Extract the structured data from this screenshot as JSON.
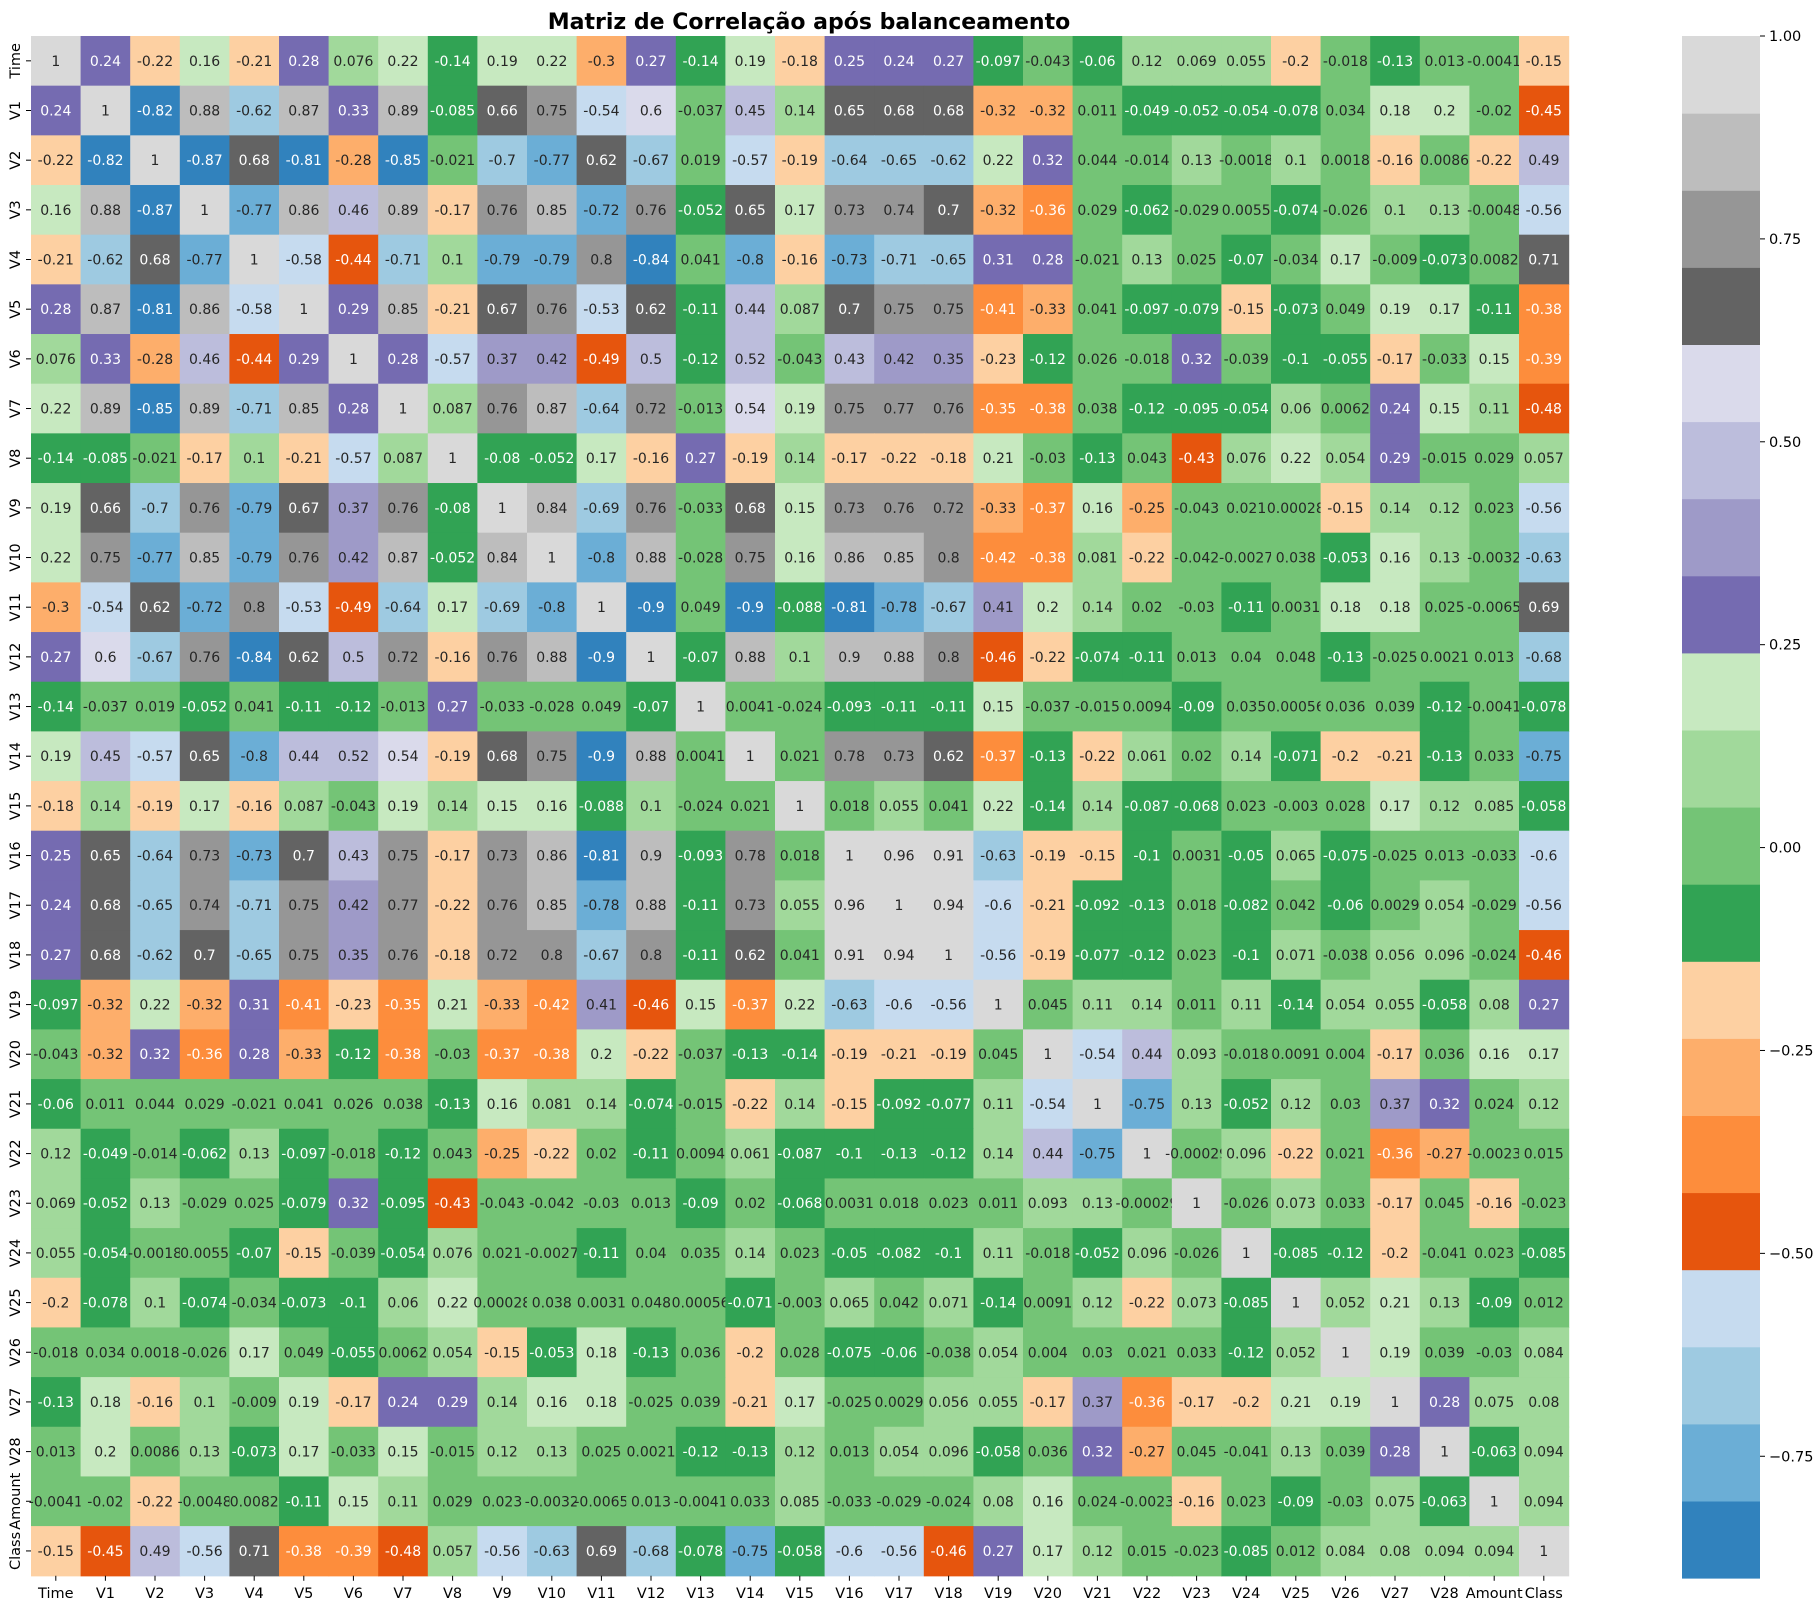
{
  "chart_data": {
    "type": "heatmap",
    "title": "Matriz de Correlação após balanceamento",
    "labels": [
      "Time",
      "V1",
      "V2",
      "V3",
      "V4",
      "V5",
      "V6",
      "V7",
      "V8",
      "V9",
      "V10",
      "V11",
      "V12",
      "V13",
      "V14",
      "V15",
      "V16",
      "V17",
      "V18",
      "V19",
      "V20",
      "V21",
      "V22",
      "V23",
      "V24",
      "V25",
      "V26",
      "V27",
      "V28",
      "Amount",
      "Class"
    ],
    "matrix": [
      [
        "1",
        "0.24",
        "-0.22",
        "0.16",
        "-0.21",
        "0.28",
        "0.076",
        "0.22",
        "-0.14",
        "0.19",
        "0.22",
        "-0.3",
        "0.27",
        "-0.14",
        "0.19",
        "-0.18",
        "0.25",
        "0.24",
        "0.27",
        "-0.097",
        "-0.043",
        "-0.06",
        "0.12",
        "0.069",
        "0.055",
        "-0.2",
        "-0.018",
        "-0.13",
        "0.013",
        "-0.0041",
        "-0.15"
      ],
      [
        "0.24",
        "1",
        "-0.82",
        "0.88",
        "-0.62",
        "0.87",
        "0.33",
        "0.89",
        "-0.085",
        "0.66",
        "0.75",
        "-0.54",
        "0.6",
        "-0.037",
        "0.45",
        "0.14",
        "0.65",
        "0.68",
        "0.68",
        "-0.32",
        "-0.32",
        "0.011",
        "-0.049",
        "-0.052",
        "-0.054",
        "-0.078",
        "0.034",
        "0.18",
        "0.2",
        "-0.02",
        "-0.45"
      ],
      [
        "-0.22",
        "-0.82",
        "1",
        "-0.87",
        "0.68",
        "-0.81",
        "-0.28",
        "-0.85",
        "-0.021",
        "-0.7",
        "-0.77",
        "0.62",
        "-0.67",
        "0.019",
        "-0.57",
        "-0.19",
        "-0.64",
        "-0.65",
        "-0.62",
        "0.22",
        "0.32",
        "0.044",
        "-0.014",
        "0.13",
        "-0.0018",
        "0.1",
        "0.0018",
        "-0.16",
        "0.0086",
        "-0.22",
        "0.49"
      ],
      [
        "0.16",
        "0.88",
        "-0.87",
        "1",
        "-0.77",
        "0.86",
        "0.46",
        "0.89",
        "-0.17",
        "0.76",
        "0.85",
        "-0.72",
        "0.76",
        "-0.052",
        "0.65",
        "0.17",
        "0.73",
        "0.74",
        "0.7",
        "-0.32",
        "-0.36",
        "0.029",
        "-0.062",
        "-0.029",
        "0.0055",
        "-0.074",
        "-0.026",
        "0.1",
        "0.13",
        "-0.0048",
        "-0.56"
      ],
      [
        "-0.21",
        "-0.62",
        "0.68",
        "-0.77",
        "1",
        "-0.58",
        "-0.44",
        "-0.71",
        "0.1",
        "-0.79",
        "-0.79",
        "0.8",
        "-0.84",
        "0.041",
        "-0.8",
        "-0.16",
        "-0.73",
        "-0.71",
        "-0.65",
        "0.31",
        "0.28",
        "-0.021",
        "0.13",
        "0.025",
        "-0.07",
        "-0.034",
        "0.17",
        "-0.009",
        "-0.073",
        "0.0082",
        "0.71"
      ],
      [
        "0.28",
        "0.87",
        "-0.81",
        "0.86",
        "-0.58",
        "1",
        "0.29",
        "0.85",
        "-0.21",
        "0.67",
        "0.76",
        "-0.53",
        "0.62",
        "-0.11",
        "0.44",
        "0.087",
        "0.7",
        "0.75",
        "0.75",
        "-0.41",
        "-0.33",
        "0.041",
        "-0.097",
        "-0.079",
        "-0.15",
        "-0.073",
        "0.049",
        "0.19",
        "0.17",
        "-0.11",
        "-0.38"
      ],
      [
        "0.076",
        "0.33",
        "-0.28",
        "0.46",
        "-0.44",
        "0.29",
        "1",
        "0.28",
        "-0.57",
        "0.37",
        "0.42",
        "-0.49",
        "0.5",
        "-0.12",
        "0.52",
        "-0.043",
        "0.43",
        "0.42",
        "0.35",
        "-0.23",
        "-0.12",
        "0.026",
        "-0.018",
        "0.32",
        "-0.039",
        "-0.1",
        "-0.055",
        "-0.17",
        "-0.033",
        "0.15",
        "-0.39"
      ],
      [
        "0.22",
        "0.89",
        "-0.85",
        "0.89",
        "-0.71",
        "0.85",
        "0.28",
        "1",
        "0.087",
        "0.76",
        "0.87",
        "-0.64",
        "0.72",
        "-0.013",
        "0.54",
        "0.19",
        "0.75",
        "0.77",
        "0.76",
        "-0.35",
        "-0.38",
        "0.038",
        "-0.12",
        "-0.095",
        "-0.054",
        "0.06",
        "0.0062",
        "0.24",
        "0.15",
        "0.11",
        "-0.48"
      ],
      [
        "-0.14",
        "-0.085",
        "-0.021",
        "-0.17",
        "0.1",
        "-0.21",
        "-0.57",
        "0.087",
        "1",
        "-0.08",
        "-0.052",
        "0.17",
        "-0.16",
        "0.27",
        "-0.19",
        "0.14",
        "-0.17",
        "-0.22",
        "-0.18",
        "0.21",
        "-0.03",
        "-0.13",
        "0.043",
        "-0.43",
        "0.076",
        "0.22",
        "0.054",
        "0.29",
        "-0.015",
        "0.029",
        "0.057"
      ],
      [
        "0.19",
        "0.66",
        "-0.7",
        "0.76",
        "-0.79",
        "0.67",
        "0.37",
        "0.76",
        "-0.08",
        "1",
        "0.84",
        "-0.69",
        "0.76",
        "-0.033",
        "0.68",
        "0.15",
        "0.73",
        "0.76",
        "0.72",
        "-0.33",
        "-0.37",
        "0.16",
        "-0.25",
        "-0.043",
        "0.021",
        "0.00028",
        "-0.15",
        "0.14",
        "0.12",
        "0.023",
        "-0.56"
      ],
      [
        "0.22",
        "0.75",
        "-0.77",
        "0.85",
        "-0.79",
        "0.76",
        "0.42",
        "0.87",
        "-0.052",
        "0.84",
        "1",
        "-0.8",
        "0.88",
        "-0.028",
        "0.75",
        "0.16",
        "0.86",
        "0.85",
        "0.8",
        "-0.42",
        "-0.38",
        "0.081",
        "-0.22",
        "-0.042",
        "-0.0027",
        "0.038",
        "-0.053",
        "0.16",
        "0.13",
        "-0.0032",
        "-0.63"
      ],
      [
        "-0.3",
        "-0.54",
        "0.62",
        "-0.72",
        "0.8",
        "-0.53",
        "-0.49",
        "-0.64",
        "0.17",
        "-0.69",
        "-0.8",
        "1",
        "-0.9",
        "0.049",
        "-0.9",
        "-0.088",
        "-0.81",
        "-0.78",
        "-0.67",
        "0.41",
        "0.2",
        "0.14",
        "0.02",
        "-0.03",
        "-0.11",
        "0.0031",
        "0.18",
        "0.18",
        "0.025",
        "-0.0065",
        "0.69"
      ],
      [
        "0.27",
        "0.6",
        "-0.67",
        "0.76",
        "-0.84",
        "0.62",
        "0.5",
        "0.72",
        "-0.16",
        "0.76",
        "0.88",
        "-0.9",
        "1",
        "-0.07",
        "0.88",
        "0.1",
        "0.9",
        "0.88",
        "0.8",
        "-0.46",
        "-0.22",
        "-0.074",
        "-0.11",
        "0.013",
        "0.04",
        "0.048",
        "-0.13",
        "-0.025",
        "0.0021",
        "0.013",
        "-0.68"
      ],
      [
        "-0.14",
        "-0.037",
        "0.019",
        "-0.052",
        "0.041",
        "-0.11",
        "-0.12",
        "-0.013",
        "0.27",
        "-0.033",
        "-0.028",
        "0.049",
        "-0.07",
        "1",
        "0.0041",
        "-0.024",
        "-0.093",
        "-0.11",
        "-0.11",
        "0.15",
        "-0.037",
        "-0.015",
        "0.0094",
        "-0.09",
        "0.035",
        "0.00056",
        "0.036",
        "0.039",
        "-0.12",
        "-0.0041",
        "-0.078"
      ],
      [
        "0.19",
        "0.45",
        "-0.57",
        "0.65",
        "-0.8",
        "0.44",
        "0.52",
        "0.54",
        "-0.19",
        "0.68",
        "0.75",
        "-0.9",
        "0.88",
        "0.0041",
        "1",
        "0.021",
        "0.78",
        "0.73",
        "0.62",
        "-0.37",
        "-0.13",
        "-0.22",
        "0.061",
        "0.02",
        "0.14",
        "-0.071",
        "-0.2",
        "-0.21",
        "-0.13",
        "0.033",
        "-0.75"
      ],
      [
        "-0.18",
        "0.14",
        "-0.19",
        "0.17",
        "-0.16",
        "0.087",
        "-0.043",
        "0.19",
        "0.14",
        "0.15",
        "0.16",
        "-0.088",
        "0.1",
        "-0.024",
        "0.021",
        "1",
        "0.018",
        "0.055",
        "0.041",
        "0.22",
        "-0.14",
        "0.14",
        "-0.087",
        "-0.068",
        "0.023",
        "-0.003",
        "0.028",
        "0.17",
        "0.12",
        "0.085",
        "-0.058"
      ],
      [
        "0.25",
        "0.65",
        "-0.64",
        "0.73",
        "-0.73",
        "0.7",
        "0.43",
        "0.75",
        "-0.17",
        "0.73",
        "0.86",
        "-0.81",
        "0.9",
        "-0.093",
        "0.78",
        "0.018",
        "1",
        "0.96",
        "0.91",
        "-0.63",
        "-0.19",
        "-0.15",
        "-0.1",
        "0.0031",
        "-0.05",
        "0.065",
        "-0.075",
        "-0.025",
        "0.013",
        "-0.033",
        "-0.6"
      ],
      [
        "0.24",
        "0.68",
        "-0.65",
        "0.74",
        "-0.71",
        "0.75",
        "0.42",
        "0.77",
        "-0.22",
        "0.76",
        "0.85",
        "-0.78",
        "0.88",
        "-0.11",
        "0.73",
        "0.055",
        "0.96",
        "1",
        "0.94",
        "-0.6",
        "-0.21",
        "-0.092",
        "-0.13",
        "0.018",
        "-0.082",
        "0.042",
        "-0.06",
        "0.0029",
        "0.054",
        "-0.029",
        "-0.56"
      ],
      [
        "0.27",
        "0.68",
        "-0.62",
        "0.7",
        "-0.65",
        "0.75",
        "0.35",
        "0.76",
        "-0.18",
        "0.72",
        "0.8",
        "-0.67",
        "0.8",
        "-0.11",
        "0.62",
        "0.041",
        "0.91",
        "0.94",
        "1",
        "-0.56",
        "-0.19",
        "-0.077",
        "-0.12",
        "0.023",
        "-0.1",
        "0.071",
        "-0.038",
        "0.056",
        "0.096",
        "-0.024",
        "-0.46"
      ],
      [
        "-0.097",
        "-0.32",
        "0.22",
        "-0.32",
        "0.31",
        "-0.41",
        "-0.23",
        "-0.35",
        "0.21",
        "-0.33",
        "-0.42",
        "0.41",
        "-0.46",
        "0.15",
        "-0.37",
        "0.22",
        "-0.63",
        "-0.6",
        "-0.56",
        "1",
        "0.045",
        "0.11",
        "0.14",
        "0.011",
        "0.11",
        "-0.14",
        "0.054",
        "0.055",
        "-0.058",
        "0.08",
        "0.27"
      ],
      [
        "-0.043",
        "-0.32",
        "0.32",
        "-0.36",
        "0.28",
        "-0.33",
        "-0.12",
        "-0.38",
        "-0.03",
        "-0.37",
        "-0.38",
        "0.2",
        "-0.22",
        "-0.037",
        "-0.13",
        "-0.14",
        "-0.19",
        "-0.21",
        "-0.19",
        "0.045",
        "1",
        "-0.54",
        "0.44",
        "0.093",
        "-0.018",
        "0.0091",
        "0.004",
        "-0.17",
        "0.036",
        "0.16",
        "0.17"
      ],
      [
        "-0.06",
        "0.011",
        "0.044",
        "0.029",
        "-0.021",
        "0.041",
        "0.026",
        "0.038",
        "-0.13",
        "0.16",
        "0.081",
        "0.14",
        "-0.074",
        "-0.015",
        "-0.22",
        "0.14",
        "-0.15",
        "-0.092",
        "-0.077",
        "0.11",
        "-0.54",
        "1",
        "-0.75",
        "0.13",
        "-0.052",
        "0.12",
        "0.03",
        "0.37",
        "0.32",
        "0.024",
        "0.12"
      ],
      [
        "0.12",
        "-0.049",
        "-0.014",
        "-0.062",
        "0.13",
        "-0.097",
        "-0.018",
        "-0.12",
        "0.043",
        "-0.25",
        "-0.22",
        "0.02",
        "-0.11",
        "0.0094",
        "0.061",
        "-0.087",
        "-0.1",
        "-0.13",
        "-0.12",
        "0.14",
        "0.44",
        "-0.75",
        "1",
        "-0.00029",
        "0.096",
        "-0.22",
        "0.021",
        "-0.36",
        "-0.27",
        "-0.0023",
        "0.015"
      ],
      [
        "0.069",
        "-0.052",
        "0.13",
        "-0.029",
        "0.025",
        "-0.079",
        "0.32",
        "-0.095",
        "-0.43",
        "-0.043",
        "-0.042",
        "-0.03",
        "0.013",
        "-0.09",
        "0.02",
        "-0.068",
        "0.0031",
        "0.018",
        "0.023",
        "0.011",
        "0.093",
        "0.13",
        "-0.00029",
        "1",
        "-0.026",
        "0.073",
        "0.033",
        "-0.17",
        "0.045",
        "-0.16",
        "-0.023"
      ],
      [
        "0.055",
        "-0.054",
        "-0.0018",
        "0.0055",
        "-0.07",
        "-0.15",
        "-0.039",
        "-0.054",
        "0.076",
        "0.021",
        "-0.0027",
        "-0.11",
        "0.04",
        "0.035",
        "0.14",
        "0.023",
        "-0.05",
        "-0.082",
        "-0.1",
        "0.11",
        "-0.018",
        "-0.052",
        "0.096",
        "-0.026",
        "1",
        "-0.085",
        "-0.12",
        "-0.2",
        "-0.041",
        "0.023",
        "-0.085"
      ],
      [
        "-0.2",
        "-0.078",
        "0.1",
        "-0.074",
        "-0.034",
        "-0.073",
        "-0.1",
        "0.06",
        "0.22",
        "0.00028",
        "0.038",
        "0.0031",
        "0.048",
        "0.00056",
        "-0.071",
        "-0.003",
        "0.065",
        "0.042",
        "0.071",
        "-0.14",
        "0.0091",
        "0.12",
        "-0.22",
        "0.073",
        "-0.085",
        "1",
        "0.052",
        "0.21",
        "0.13",
        "-0.09",
        "0.012"
      ],
      [
        "-0.018",
        "0.034",
        "0.0018",
        "-0.026",
        "0.17",
        "0.049",
        "-0.055",
        "0.0062",
        "0.054",
        "-0.15",
        "-0.053",
        "0.18",
        "-0.13",
        "0.036",
        "-0.2",
        "0.028",
        "-0.075",
        "-0.06",
        "-0.038",
        "0.054",
        "0.004",
        "0.03",
        "0.021",
        "0.033",
        "-0.12",
        "0.052",
        "1",
        "0.19",
        "0.039",
        "-0.03",
        "0.084"
      ],
      [
        "-0.13",
        "0.18",
        "-0.16",
        "0.1",
        "-0.009",
        "0.19",
        "-0.17",
        "0.24",
        "0.29",
        "0.14",
        "0.16",
        "0.18",
        "-0.025",
        "0.039",
        "-0.21",
        "0.17",
        "-0.025",
        "0.0029",
        "0.056",
        "0.055",
        "-0.17",
        "0.37",
        "-0.36",
        "-0.17",
        "-0.2",
        "0.21",
        "0.19",
        "1",
        "0.28",
        "0.075",
        "0.08"
      ],
      [
        "0.013",
        "0.2",
        "0.0086",
        "0.13",
        "-0.073",
        "0.17",
        "-0.033",
        "0.15",
        "-0.015",
        "0.12",
        "0.13",
        "0.025",
        "0.0021",
        "-0.12",
        "-0.13",
        "0.12",
        "0.013",
        "0.054",
        "0.096",
        "-0.058",
        "0.036",
        "0.32",
        "-0.27",
        "0.045",
        "-0.041",
        "0.13",
        "0.039",
        "0.28",
        "1",
        "-0.063",
        "0.094"
      ],
      [
        "-0.0041",
        "-0.02",
        "-0.22",
        "-0.0048",
        "0.0082",
        "-0.11",
        "0.15",
        "0.11",
        "0.029",
        "0.023",
        "-0.0032",
        "-0.0065",
        "0.013",
        "-0.0041",
        "0.033",
        "0.085",
        "-0.033",
        "-0.029",
        "-0.024",
        "0.08",
        "0.16",
        "0.024",
        "-0.0023",
        "-0.16",
        "0.023",
        "-0.09",
        "-0.03",
        "0.075",
        "-0.063",
        "1",
        "0.094"
      ],
      [
        "-0.15",
        "-0.45",
        "0.49",
        "-0.56",
        "0.71",
        "-0.38",
        "-0.39",
        "-0.48",
        "0.057",
        "-0.56",
        "-0.63",
        "0.69",
        "-0.68",
        "-0.078",
        "-0.75",
        "-0.058",
        "-0.6",
        "-0.56",
        "-0.46",
        "0.27",
        "0.17",
        "0.12",
        "0.015",
        "-0.023",
        "-0.085",
        "0.012",
        "0.084",
        "0.08",
        "0.094",
        "0.094",
        "1"
      ]
    ],
    "vmin": -0.9,
    "vmax": 1.0,
    "colormap": "tab20c",
    "colormap_colors": [
      "#3182bd",
      "#6baed6",
      "#9ecae1",
      "#c6dbef",
      "#e6550d",
      "#fd8d3c",
      "#fdae6b",
      "#fdd0a2",
      "#31a354",
      "#74c476",
      "#a1d99b",
      "#c7e9c0",
      "#756bb1",
      "#9e9ac8",
      "#bcbddc",
      "#dadaeb",
      "#636363",
      "#969696",
      "#bdbdbd",
      "#d9d9d9"
    ],
    "colorbar_ticks": [
      "1.00",
      "0.75",
      "0.50",
      "0.25",
      "0.00",
      "−0.25",
      "−0.50",
      "−0.75"
    ],
    "colorbar_tick_values": [
      1.0,
      0.75,
      0.5,
      0.25,
      0.0,
      -0.25,
      -0.5,
      -0.75
    ]
  }
}
